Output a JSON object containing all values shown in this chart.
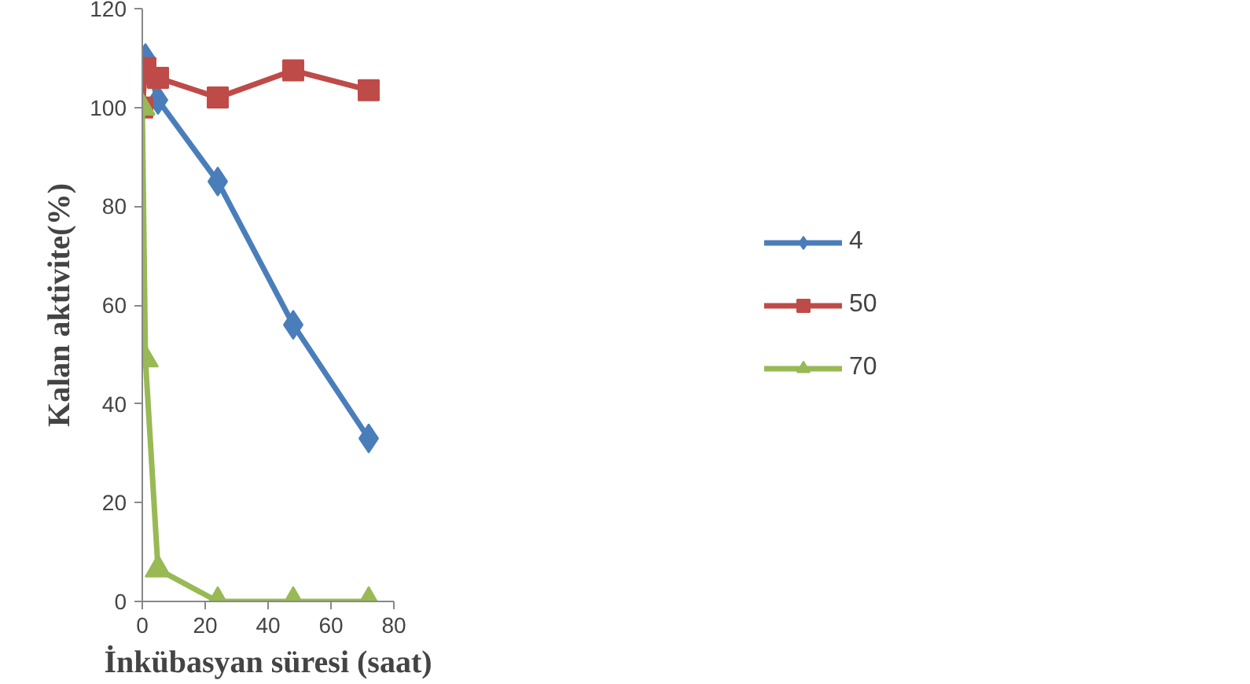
{
  "chart_data": {
    "type": "line",
    "xlabel": "İnkübasyan süresi (saat)",
    "ylabel": "Kalan aktivite(%)",
    "x": [
      0,
      1,
      5,
      24,
      48,
      72
    ],
    "series": [
      {
        "name": "4",
        "color": "#4a7ebb",
        "marker": "diamond",
        "values": [
          100,
          110,
          101.5,
          85,
          56,
          33
        ]
      },
      {
        "name": "50",
        "color": "#be4b48",
        "marker": "square",
        "values": [
          100,
          108,
          106,
          102,
          107.5,
          103.5
        ]
      },
      {
        "name": "70",
        "color": "#98b954",
        "marker": "triangle",
        "values": [
          100,
          49,
          6.5,
          0,
          0,
          0
        ]
      }
    ],
    "xlim": [
      0,
      80
    ],
    "xticks": [
      0,
      20,
      40,
      60,
      80
    ],
    "ylim": [
      0,
      120
    ],
    "yticks": [
      0,
      20,
      40,
      60,
      80,
      100,
      120
    ],
    "grid": false,
    "legend": "right",
    "line_style": "solid"
  }
}
